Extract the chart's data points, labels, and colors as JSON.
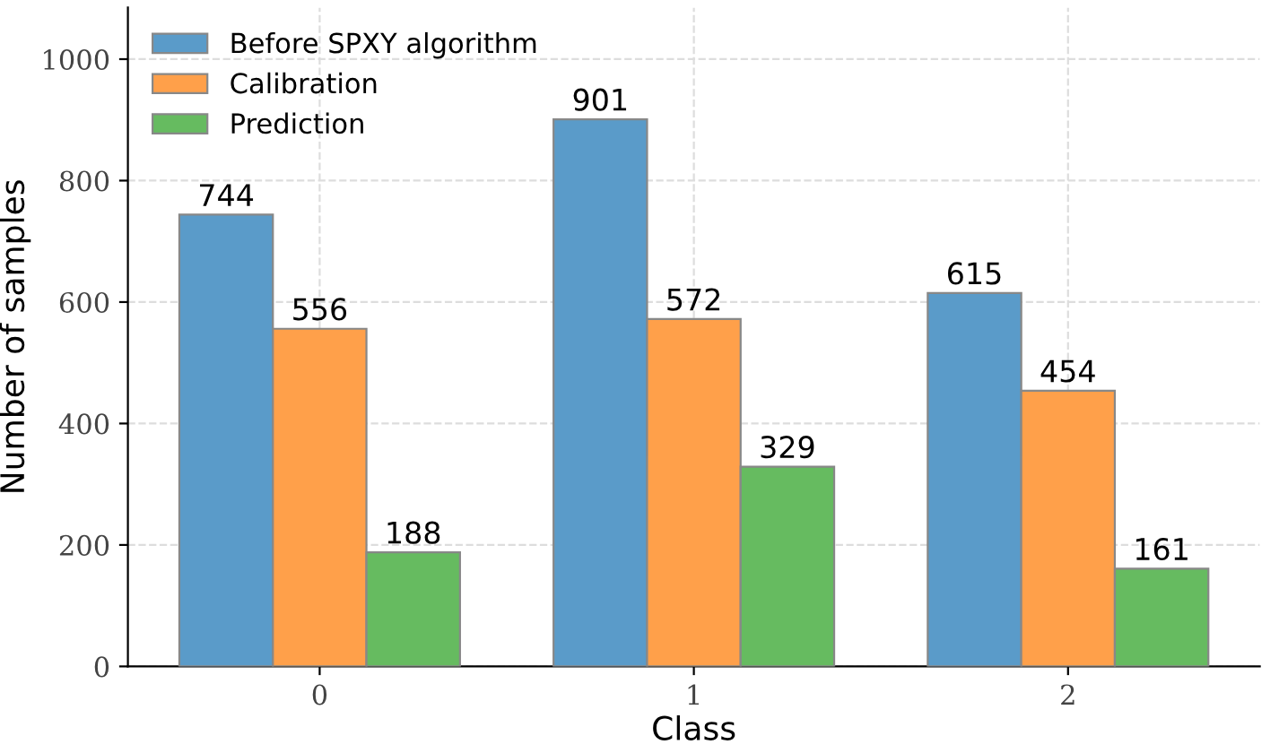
{
  "chart_data": {
    "type": "bar",
    "xlabel": "Class",
    "ylabel": "Number of samples",
    "categories": [
      "0",
      "1",
      "2"
    ],
    "series": [
      {
        "name": "Before SPXY algorithm",
        "color": "#5a9bc9",
        "values": [
          744,
          901,
          615
        ]
      },
      {
        "name": "Calibration",
        "color": "#ffa04a",
        "values": [
          556,
          572,
          454
        ]
      },
      {
        "name": "Prediction",
        "color": "#66bb60",
        "values": [
          188,
          329,
          161
        ]
      }
    ],
    "ylim": [
      0,
      1085
    ],
    "yticks": [
      0,
      200,
      400,
      600,
      800,
      1000
    ],
    "grid": true,
    "legend": "top left",
    "data_labels": true
  }
}
